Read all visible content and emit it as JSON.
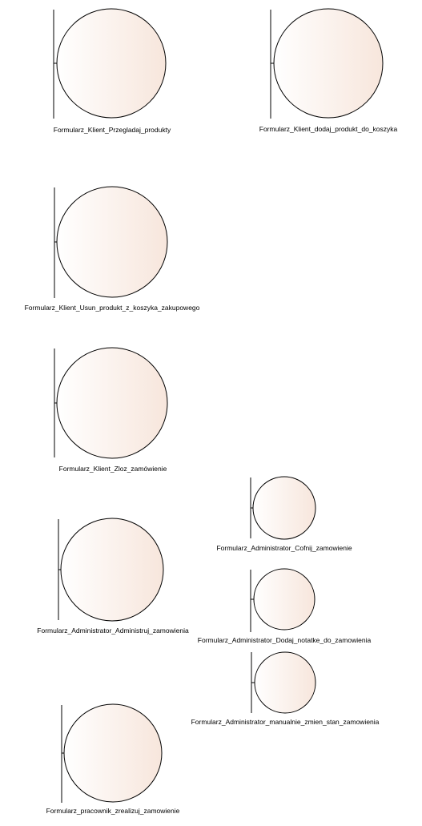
{
  "diagram": {
    "colors": {
      "line": "#000000",
      "fill_light": "#ffffff",
      "fill_tint": "#f7e6dc",
      "outline": "#000000"
    },
    "boundaries": [
      {
        "name": "Formularz_Klient_Przegladaj_produkty"
      },
      {
        "name": "Formularz_Klient_dodaj_produkt_do_koszyka"
      },
      {
        "name": "Formularz_Klient_Usun_produkt_z_koszyka_zakupowego"
      },
      {
        "name": "Formularz_Klient_Zloz_zamówienie"
      },
      {
        "name": "Formularz_Administrator_Administruj_zamowienia"
      },
      {
        "name": "Formularz_Administrator_Cofnij_zamowienie"
      },
      {
        "name": "Formularz_Administrator_Dodaj_notatke_do_zamowienia"
      },
      {
        "name": "Formularz_Administrator_manualnie_zmien_stan_zamowienia"
      },
      {
        "name": "Formularz_pracownik_zrealizuj_zamowienie"
      }
    ]
  }
}
